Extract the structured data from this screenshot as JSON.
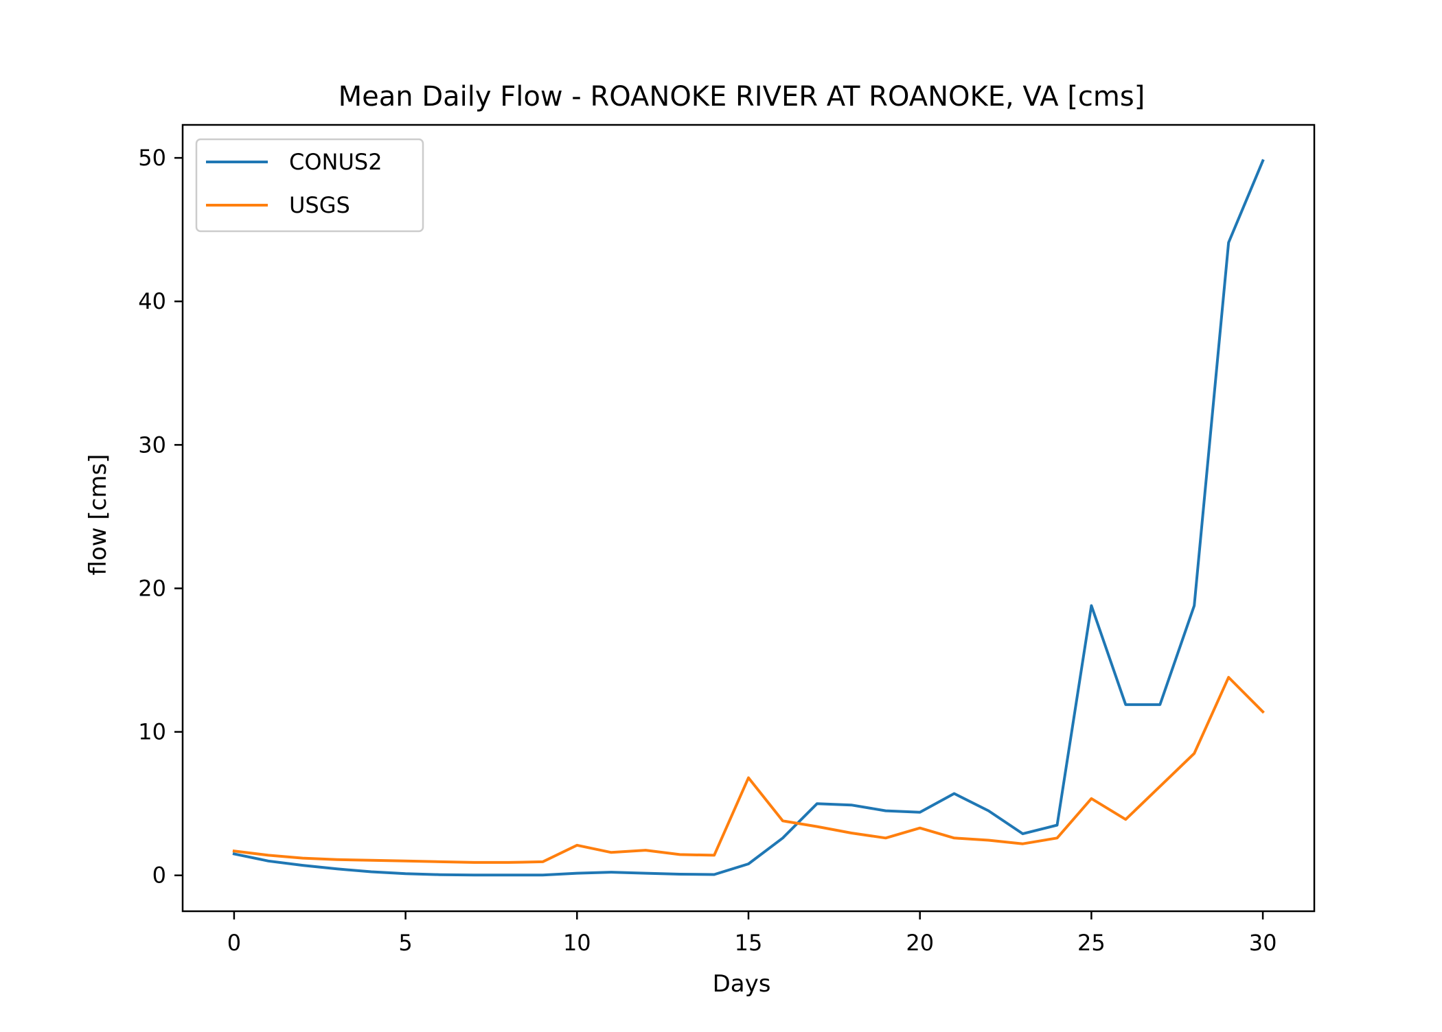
{
  "chart_data": {
    "type": "line",
    "title": "Mean Daily Flow - ROANOKE RIVER AT ROANOKE, VA [cms]",
    "xlabel": "Days",
    "ylabel": "flow [cms]",
    "xlim": [
      -1.5,
      31.5
    ],
    "ylim": [
      -2.5,
      52.3
    ],
    "xticks": [
      0,
      5,
      10,
      15,
      20,
      25,
      30
    ],
    "yticks": [
      0,
      10,
      20,
      30,
      40,
      50
    ],
    "grid": false,
    "legend_position": "upper left",
    "x": [
      0,
      1,
      2,
      3,
      4,
      5,
      6,
      7,
      8,
      9,
      10,
      11,
      12,
      13,
      14,
      15,
      16,
      17,
      18,
      19,
      20,
      21,
      22,
      23,
      24,
      25,
      26,
      27,
      28,
      29,
      30
    ],
    "series": [
      {
        "name": "CONUS2",
        "color": "#1f77b4",
        "values": [
          1.5,
          1.0,
          0.7,
          0.45,
          0.25,
          0.12,
          0.05,
          0.02,
          0.02,
          0.02,
          0.15,
          0.22,
          0.15,
          0.08,
          0.06,
          0.8,
          2.6,
          5.0,
          4.9,
          4.5,
          4.4,
          5.7,
          4.5,
          2.9,
          3.5,
          18.8,
          11.9,
          11.9,
          18.8,
          44.1,
          49.8
        ]
      },
      {
        "name": "USGS",
        "color": "#ff7f0e",
        "values": [
          1.7,
          1.4,
          1.2,
          1.1,
          1.05,
          1.0,
          0.95,
          0.9,
          0.9,
          0.95,
          2.1,
          1.6,
          1.75,
          1.45,
          1.4,
          6.8,
          3.8,
          3.4,
          2.95,
          2.6,
          3.3,
          2.6,
          2.45,
          2.2,
          2.6,
          5.35,
          3.9,
          6.2,
          8.5,
          13.8,
          11.4
        ]
      }
    ]
  }
}
